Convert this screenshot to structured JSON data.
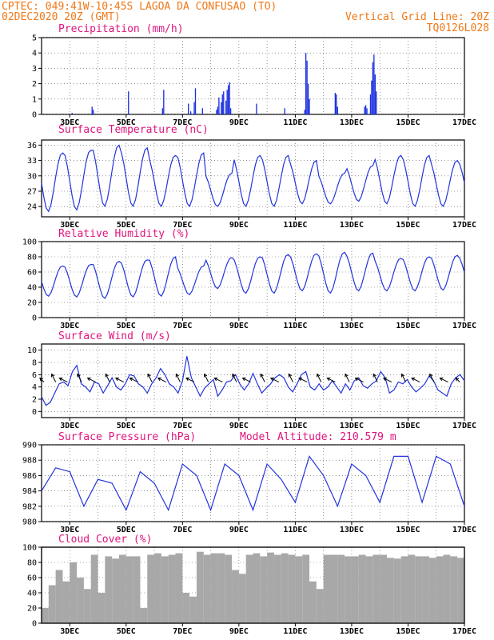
{
  "header": {
    "line1": "CPTEC:  049:41W-10:45S  LAGOA DA CONFUSAO (TO)",
    "line2_left": "02DEC2020 20Z (GMT)",
    "line2_right": "Vertical Grid Line: 20Z",
    "line3_right": "TQ0126L028"
  },
  "colors": {
    "header": "#f07818",
    "title": "#e0147c",
    "series": "#2233dd",
    "bars": "#1a2ee0",
    "cloud": "#a8a8a8",
    "grid": "#555555"
  },
  "chart_data": [
    {
      "type": "bar",
      "title": "Precipitation (mm/h)",
      "x_tick_labels": [
        "3DEC",
        "5DEC",
        "7DEC",
        "9DEC",
        "11DEC",
        "13DEC",
        "15DEC",
        "17DEC"
      ],
      "xlim_hours": [
        0,
        360
      ],
      "ylim": [
        0,
        5
      ],
      "y_ticks": [
        0,
        1,
        2,
        3,
        4,
        5
      ],
      "values_hours": [
        [
          26,
          0.1
        ],
        [
          43,
          0.5
        ],
        [
          44,
          0.3
        ],
        [
          74,
          1.5
        ],
        [
          103,
          0.4
        ],
        [
          104,
          1.6
        ],
        [
          125,
          0.7
        ],
        [
          127,
          0.2
        ],
        [
          130,
          0.8
        ],
        [
          131,
          1.7
        ],
        [
          137,
          0.4
        ],
        [
          149,
          0.3
        ],
        [
          150,
          0.5
        ],
        [
          151,
          1.1
        ],
        [
          153,
          0.8
        ],
        [
          154,
          1.3
        ],
        [
          155,
          1.5
        ],
        [
          157,
          0.9
        ],
        [
          158,
          1.6
        ],
        [
          159,
          1.9
        ],
        [
          160,
          2.1
        ],
        [
          161,
          0.4
        ],
        [
          183,
          0.7
        ],
        [
          207,
          0.4
        ],
        [
          224,
          0.3
        ],
        [
          225,
          4.0
        ],
        [
          226,
          3.5
        ],
        [
          227,
          2.0
        ],
        [
          228,
          1.0
        ],
        [
          250,
          1.4
        ],
        [
          251,
          1.3
        ],
        [
          252,
          0.5
        ],
        [
          275,
          0.5
        ],
        [
          276,
          0.6
        ],
        [
          277,
          0.4
        ],
        [
          280,
          1.3
        ],
        [
          281,
          2.2
        ],
        [
          282,
          3.4
        ],
        [
          283,
          3.9
        ],
        [
          284,
          2.6
        ],
        [
          285,
          1.5
        ]
      ]
    },
    {
      "type": "line",
      "title": "Surface Temperature (nC)",
      "x_tick_labels": [
        "3DEC",
        "5DEC",
        "7DEC",
        "9DEC",
        "11DEC",
        "13DEC",
        "15DEC",
        "17DEC"
      ],
      "xlim_hours": [
        0,
        360
      ],
      "ylim": [
        22,
        37
      ],
      "y_ticks": [
        24,
        27,
        30,
        33,
        36
      ],
      "daily_peaks": [
        34.5,
        35,
        36,
        35.5,
        34,
        34.5,
        30.5,
        34,
        34,
        33,
        30.5,
        32,
        34,
        34,
        33,
        33,
        33
      ],
      "daily_lows": [
        23,
        23.3,
        24,
        24,
        24,
        24,
        24,
        24,
        24,
        24.5,
        24.5,
        25,
        24.5,
        24,
        24,
        24.5,
        24.5
      ]
    },
    {
      "type": "line",
      "title": "Relative Humidity (%)",
      "x_tick_labels": [
        "3DEC",
        "5DEC",
        "7DEC",
        "9DEC",
        "11DEC",
        "13DEC",
        "15DEC",
        "17DEC"
      ],
      "xlim_hours": [
        0,
        360
      ],
      "ylim": [
        0,
        100
      ],
      "y_ticks": [
        0,
        20,
        40,
        60,
        80,
        100
      ],
      "daily_peaks": [
        68,
        70,
        74,
        76,
        80,
        68,
        79,
        80,
        83,
        84,
        86,
        85,
        78,
        80,
        82,
        82,
        55
      ],
      "daily_lows": [
        28,
        27,
        25,
        27,
        28,
        30,
        38,
        32,
        32,
        35,
        32,
        35,
        35,
        35,
        36,
        38,
        38
      ]
    },
    {
      "type": "line",
      "title": "Surface Wind (m/s)",
      "x_tick_labels": [
        "3DEC",
        "5DEC",
        "7DEC",
        "9DEC",
        "11DEC",
        "13DEC",
        "15DEC",
        "17DEC"
      ],
      "xlim_hours": [
        0,
        360
      ],
      "ylim": [
        -1,
        11
      ],
      "y_ticks": [
        0,
        2,
        4,
        6,
        8,
        10
      ],
      "speed_series": [
        2.4,
        1.0,
        1.5,
        3.0,
        4.5,
        4.8,
        4.2,
        6.5,
        7.5,
        4.5,
        4.0,
        3.2,
        4.8,
        4.5,
        3.0,
        4.2,
        5.5,
        4.0,
        3.5,
        4.5,
        6.0,
        5.8,
        4.5,
        4.0,
        3.0,
        4.5,
        5.5,
        7.0,
        6.0,
        4.5,
        4.0,
        3.0,
        5.0,
        9.0,
        5.5,
        4.0,
        2.5,
        3.8,
        4.5,
        5.2,
        2.5,
        3.5,
        4.8,
        5.0,
        6.0,
        4.5,
        3.5,
        4.5,
        6.2,
        4.5,
        3.0,
        3.8,
        4.5,
        5.5,
        6.0,
        5.5,
        4.0,
        3.2,
        4.5,
        6.0,
        6.5,
        4.0,
        3.5,
        4.5,
        3.5,
        4.0,
        5.0,
        4.0,
        3.0,
        4.5,
        3.5,
        5.0,
        5.5,
        4.2,
        3.8,
        4.5,
        5.0,
        6.5,
        5.5,
        3.0,
        3.5,
        4.8,
        4.5,
        5.2,
        4.0,
        3.2,
        3.8,
        4.5,
        5.8,
        5.0,
        3.5,
        3.0,
        2.5,
        4.5,
        5.5,
        6.0,
        5.0
      ],
      "wind_direction_arrows": [
        {
          "t": 2,
          "dx": -1,
          "dy": -1
        },
        {
          "t": 12,
          "dx": -1,
          "dy": -2
        },
        {
          "t": 22,
          "dx": -2,
          "dy": -1
        },
        {
          "t": 34,
          "dx": -1,
          "dy": -2
        },
        {
          "t": 46,
          "dx": -2,
          "dy": -1
        },
        {
          "t": 58,
          "dx": -1,
          "dy": -2
        },
        {
          "t": 70,
          "dx": -2,
          "dy": -1
        },
        {
          "t": 82,
          "dx": -2,
          "dy": -1
        },
        {
          "t": 94,
          "dx": -1,
          "dy": -2
        },
        {
          "t": 106,
          "dx": -2,
          "dy": -1
        },
        {
          "t": 118,
          "dx": -1,
          "dy": -2
        },
        {
          "t": 130,
          "dx": -2,
          "dy": -1
        },
        {
          "t": 142,
          "dx": -1,
          "dy": -2
        },
        {
          "t": 154,
          "dx": -2,
          "dy": -1
        },
        {
          "t": 166,
          "dx": -1,
          "dy": -2
        },
        {
          "t": 178,
          "dx": -2,
          "dy": -1
        },
        {
          "t": 190,
          "dx": -1,
          "dy": -2
        },
        {
          "t": 202,
          "dx": -2,
          "dy": -1
        },
        {
          "t": 214,
          "dx": -1,
          "dy": -2
        },
        {
          "t": 226,
          "dx": -2,
          "dy": -1
        },
        {
          "t": 238,
          "dx": -1,
          "dy": -2
        },
        {
          "t": 250,
          "dx": -2,
          "dy": -1
        },
        {
          "t": 262,
          "dx": -1,
          "dy": -2
        },
        {
          "t": 274,
          "dx": -2,
          "dy": -1
        },
        {
          "t": 286,
          "dx": -1,
          "dy": -2
        },
        {
          "t": 298,
          "dx": -2,
          "dy": -1
        },
        {
          "t": 310,
          "dx": -1,
          "dy": -2
        },
        {
          "t": 322,
          "dx": -2,
          "dy": -1
        },
        {
          "t": 334,
          "dx": -1,
          "dy": -2
        },
        {
          "t": 346,
          "dx": -2,
          "dy": -1
        },
        {
          "t": 356,
          "dx": -1,
          "dy": -1
        }
      ]
    },
    {
      "type": "line",
      "title": "Surface Pressure (hPa)",
      "subtitle": "Model Altitude: 210.579 m",
      "x_tick_labels": [
        "3DEC",
        "5DEC",
        "7DEC",
        "9DEC",
        "11DEC",
        "13DEC",
        "15DEC",
        "17DEC"
      ],
      "xlim_hours": [
        0,
        360
      ],
      "ylim": [
        980,
        990
      ],
      "y_ticks": [
        980,
        982,
        984,
        986,
        988,
        990
      ],
      "series_hourly_step12": [
        984.0,
        987.0,
        986.5,
        982.0,
        985.5,
        985.0,
        981.5,
        986.5,
        985.0,
        981.5,
        987.5,
        986.0,
        981.5,
        987.5,
        986.0,
        981.5,
        987.5,
        985.5,
        982.5,
        988.5,
        986.0,
        982.0,
        987.5,
        986.0,
        982.5,
        988.5,
        988.5,
        982.5,
        988.5,
        987.5,
        982.0
      ]
    },
    {
      "type": "area",
      "title": "Cloud Cover (%)",
      "x_tick_labels": [
        "3DEC",
        "5DEC",
        "7DEC",
        "9DEC",
        "11DEC",
        "13DEC",
        "15DEC",
        "17DEC"
      ],
      "xlim_hours": [
        0,
        360
      ],
      "ylim": [
        0,
        100
      ],
      "y_ticks": [
        0,
        20,
        40,
        60,
        80,
        100
      ],
      "series_step6": [
        20,
        50,
        70,
        55,
        80,
        60,
        45,
        90,
        40,
        88,
        85,
        90,
        88,
        88,
        20,
        90,
        92,
        88,
        90,
        92,
        40,
        35,
        94,
        90,
        92,
        92,
        90,
        70,
        65,
        90,
        92,
        88,
        93,
        90,
        92,
        90,
        88,
        90,
        55,
        45,
        90,
        90,
        90,
        88,
        88,
        90,
        88,
        90,
        90,
        86,
        85,
        88,
        90,
        88,
        88,
        86,
        88,
        90,
        88,
        86,
        88
      ]
    }
  ]
}
